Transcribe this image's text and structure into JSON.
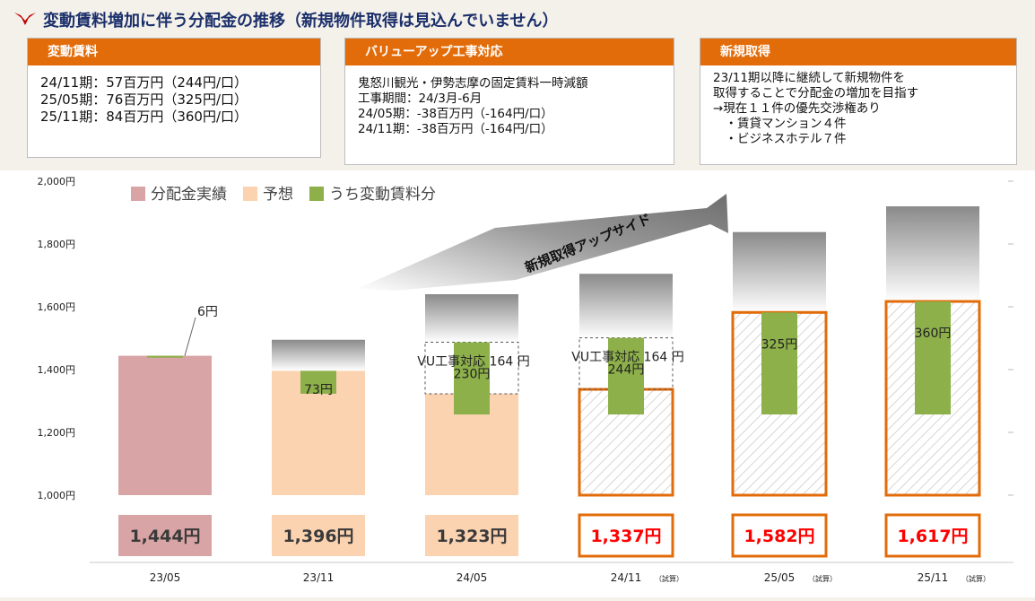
{
  "header": {
    "title": "変動賃料増加に伴う分配金の推移（新規物件取得は見込んでいません）"
  },
  "boxes": [
    {
      "heading": "変動賃料",
      "lines": [
        "24/11期：57百万円（244円/口）",
        "25/05期：76百万円（325円/口）",
        "25/11期：84百万円（360円/口）"
      ]
    },
    {
      "heading": "バリューアップ工事対応",
      "lines": [
        "鬼怒川観光・伊勢志摩の固定賃料一時減額",
        "工事期間：24/3月-6月",
        "24/05期：-38百万円（-164円/口）",
        "24/11期：-38百万円（-164円/口）"
      ]
    },
    {
      "heading": "新規取得",
      "lines": [
        "23/11期以降に継続して新規物件を",
        "取得することで分配金の増加を目指す",
        "→現在１１件の優先交渉権あり",
        "　・賃貸マンション４件",
        "　・ビジネスホテル７件"
      ]
    }
  ],
  "colors": {
    "actual": "#d9a4a5",
    "forecast": "#fbd3b0",
    "variable_rent": "#8db04a",
    "orange": "#e36c0a",
    "forecast_text": "#ff0000"
  },
  "chart_data": {
    "type": "bar",
    "ylim": [
      1000,
      2000
    ],
    "yticks": [
      "1,000円",
      "1,200円",
      "1,400円",
      "1,600円",
      "1,800円",
      "2,000円"
    ],
    "legend": [
      {
        "label": "分配金実績",
        "color": "#d9a4a5"
      },
      {
        "label": "予想",
        "color": "#fbd3b0"
      },
      {
        "label": "うち変動賃料分",
        "color": "#8db04a"
      }
    ],
    "arrow_label": "新規取得アップサイド",
    "categories": [
      "23/05",
      "23/11",
      "24/05",
      "24/11",
      "25/05",
      "25/11"
    ],
    "category_notes": [
      "",
      "",
      "",
      "（試算）",
      "（試算）",
      "（試算）"
    ],
    "distribution": [
      1444,
      1396,
      1323,
      1337,
      1582,
      1617
    ],
    "distribution_labels": [
      "1,444円",
      "1,396円",
      "1,323円",
      "1,337円",
      "1,582円",
      "1,617円"
    ],
    "bar_kind": [
      "actual",
      "forecast",
      "forecast",
      "estimate",
      "estimate",
      "estimate"
    ],
    "variable_rent": [
      6,
      73,
      230,
      244,
      325,
      360
    ],
    "variable_rent_labels": [
      "6円",
      "73円",
      "230円",
      "244円",
      "325円",
      "360円"
    ],
    "vu_adjustment": [
      0,
      0,
      164,
      164,
      0,
      0
    ],
    "vu_labels": [
      "",
      "",
      "VU工事対応 164 円",
      "VU工事対応 164 円",
      "",
      ""
    ],
    "upside_top": [
      0,
      1495,
      1640,
      1705,
      1838,
      1920
    ]
  }
}
